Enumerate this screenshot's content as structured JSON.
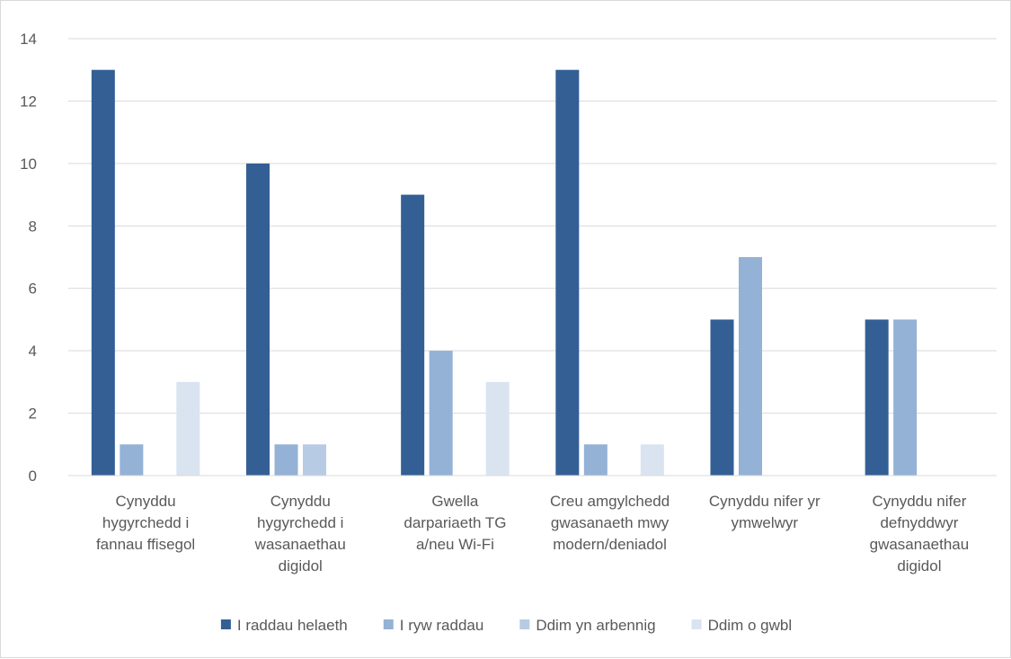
{
  "chart_data": {
    "type": "bar",
    "title": "",
    "xlabel": "",
    "ylabel": "",
    "ylim": [
      0,
      14
    ],
    "yticks": [
      0,
      2,
      4,
      6,
      8,
      10,
      12,
      14
    ],
    "grid": true,
    "legend_position": "bottom",
    "categories": [
      [
        "Cynyddu",
        "hygyrchedd i",
        "fannau ffisegol"
      ],
      [
        "Cynyddu",
        "hygyrchedd i",
        "wasanaethau",
        "digidol"
      ],
      [
        "Gwella",
        "darpariaeth TG",
        "a/neu Wi-Fi"
      ],
      [
        "Creu amgylchedd",
        "gwasanaeth mwy",
        "modern/deniadol"
      ],
      [
        "Cynyddu nifer yr",
        "ymwelwyr"
      ],
      [
        "Cynyddu nifer",
        "defnyddwyr",
        "gwasanaethau",
        "digidol"
      ]
    ],
    "series": [
      {
        "name": "I raddau helaeth",
        "color": "#335f95",
        "values": [
          13,
          10,
          9,
          13,
          5,
          5
        ]
      },
      {
        "name": "I ryw raddau",
        "color": "#94b1d6",
        "values": [
          1,
          1,
          4,
          1,
          7,
          5
        ]
      },
      {
        "name": "Ddim yn arbennig",
        "color": "#b8cbe4",
        "values": [
          0,
          1,
          0,
          0,
          0,
          0
        ]
      },
      {
        "name": "Ddim o gwbl",
        "color": "#dae4f1",
        "values": [
          3,
          0,
          3,
          1,
          0,
          0
        ]
      }
    ]
  }
}
